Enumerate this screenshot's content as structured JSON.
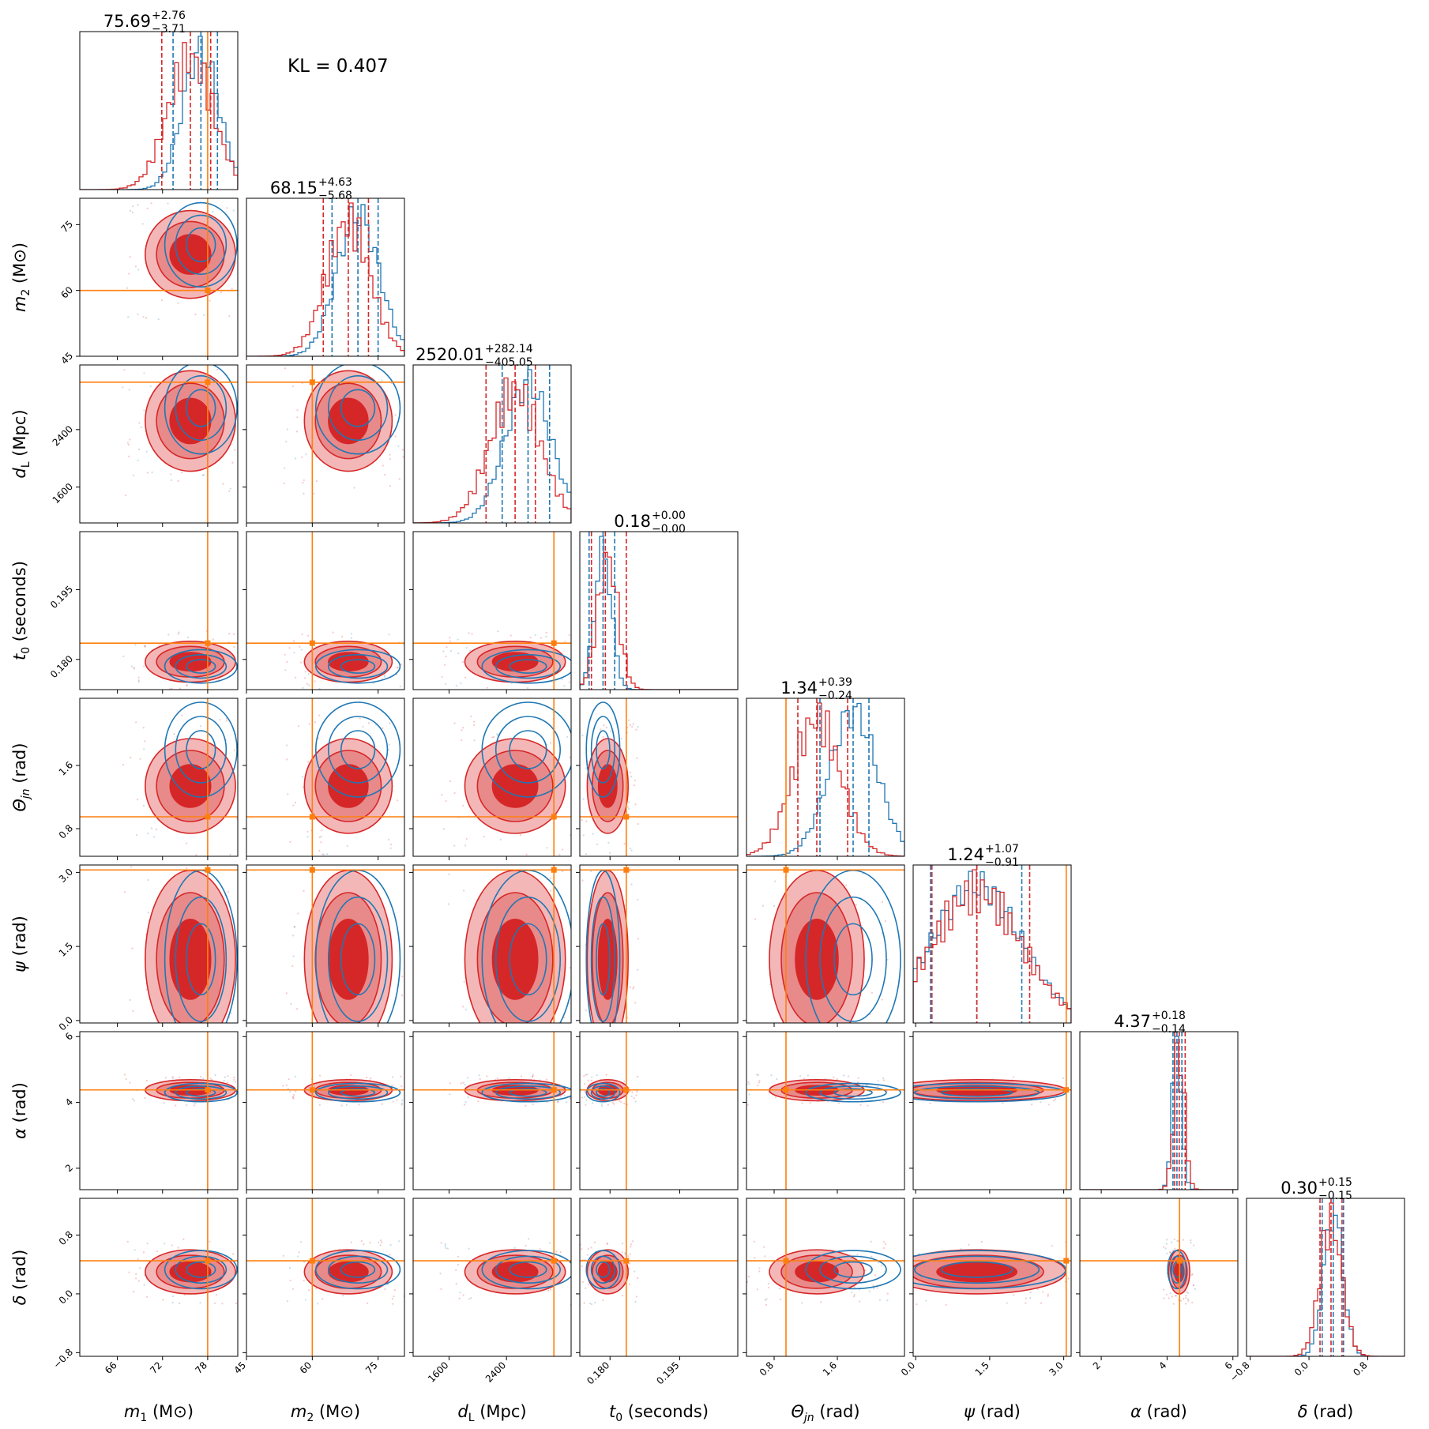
{
  "kl_text": "KL = 0.407",
  "colors": {
    "posterior_a": "#d62728",
    "posterior_a_fill_light": "#f4b7b7",
    "posterior_a_fill_mid": "#e88a8a",
    "posterior_b": "#1f77b4",
    "truth": "#ff7f0e"
  },
  "chart_data": {
    "type": "corner",
    "parameters": [
      {
        "key": "m1",
        "label_main": "m",
        "label_sub": "1",
        "label_unit": "(M⊙)",
        "range": [
          61,
          82
        ],
        "ticks": [
          66,
          72,
          78
        ],
        "truth": 78,
        "median": "75.69",
        "plus": "+2.76",
        "minus": "−3.71",
        "red_q": [
          71.9,
          75.7,
          78.4
        ],
        "blue_q": [
          73.4,
          77.1,
          79.3
        ],
        "red_mean": 75.7,
        "red_sd": 3.0,
        "blue_mean": 77.1,
        "blue_sd": 2.4
      },
      {
        "key": "m2",
        "label_main": "m",
        "label_sub": "2",
        "label_unit": "(M⊙)",
        "range": [
          45,
          81
        ],
        "ticks": [
          45,
          60,
          75
        ],
        "truth": 60,
        "median": "68.15",
        "plus": "+4.63",
        "minus": "−5.68",
        "red_q": [
          62.5,
          68.2,
          72.8
        ],
        "blue_q": [
          64.5,
          70.4,
          75.0
        ],
        "red_mean": 68.2,
        "red_sd": 5.0,
        "blue_mean": 70.4,
        "blue_sd": 4.8
      },
      {
        "key": "dL",
        "label_main": "d",
        "label_sub": "L",
        "label_unit": "(Mpc)",
        "range": [
          1100,
          3300
        ],
        "ticks": [
          1600,
          2400
        ],
        "truth": 3060,
        "median": "2520.01",
        "plus": "+282.14",
        "minus": "−405.05",
        "red_q": [
          2115,
          2520,
          2802
        ],
        "blue_q": [
          2340,
          2700,
          3000
        ],
        "red_mean": 2520,
        "red_sd": 350,
        "blue_mean": 2700,
        "blue_sd": 320
      },
      {
        "key": "t0",
        "label_main": "t",
        "label_sub": "0",
        "label_unit": "(seconds)",
        "range": [
          0.1735,
          0.2075
        ],
        "ticks": [
          0.18,
          0.195
        ],
        "tick_labels": [
          "0.180",
          "0.195"
        ],
        "truth": 0.1835,
        "median": "0.18",
        "plus": "+0.00",
        "minus": "−0.00",
        "red_q": [
          0.176,
          0.179,
          0.1835
        ],
        "blue_q": [
          0.1755,
          0.1785,
          0.181
        ],
        "red_mean": 0.1795,
        "red_sd": 0.0022,
        "blue_mean": 0.1785,
        "blue_sd": 0.0018
      },
      {
        "key": "theta",
        "label_main": "Θ",
        "label_sub": "jn",
        "label_unit": "(rad)",
        "range": [
          0.45,
          2.45
        ],
        "ticks": [
          0.8,
          1.6
        ],
        "truth": 0.95,
        "median": "1.34",
        "plus": "+0.39",
        "minus": "−0.24",
        "red_q": [
          1.1,
          1.34,
          1.73
        ],
        "blue_q": [
          1.38,
          1.8,
          2.0
        ],
        "red_mean": 1.34,
        "red_sd": 0.3,
        "blue_mean": 1.8,
        "blue_sd": 0.3
      },
      {
        "key": "psi",
        "label_main": "ψ",
        "label_sub": "",
        "label_unit": "(rad)",
        "range": [
          -0.05,
          3.15
        ],
        "ticks": [
          0.0,
          1.5,
          3.0
        ],
        "tick_labels": [
          "0.0",
          "1.5",
          "3.0"
        ],
        "truth": 3.05,
        "median": "1.24",
        "plus": "+1.07",
        "minus": "−0.91",
        "red_q": [
          0.33,
          1.24,
          2.31
        ],
        "blue_q": [
          0.3,
          1.24,
          2.15
        ],
        "red_mean": 1.24,
        "red_sd": 0.9,
        "blue_mean": 1.24,
        "blue_sd": 0.9
      },
      {
        "key": "alpha",
        "label_main": "α",
        "label_sub": "",
        "label_unit": "(rad)",
        "range": [
          1.35,
          6.15
        ],
        "ticks": [
          2,
          4,
          6
        ],
        "truth": 4.38,
        "median": "4.37",
        "plus": "+0.18",
        "minus": "−0.14",
        "red_q": [
          4.23,
          4.37,
          4.55
        ],
        "blue_q": [
          4.18,
          4.3,
          4.45
        ],
        "red_mean": 4.37,
        "red_sd": 0.16,
        "blue_mean": 4.3,
        "blue_sd": 0.14
      },
      {
        "key": "delta",
        "label_main": "δ",
        "label_sub": "",
        "label_unit": "(rad)",
        "range": [
          -0.85,
          1.3
        ],
        "ticks": [
          -0.8,
          0.0,
          0.8
        ],
        "tick_labels": [
          "−0.8",
          "0.0",
          "0.8"
        ],
        "truth": 0.45,
        "median": "0.30",
        "plus": "+0.15",
        "minus": "−0.15",
        "red_q": [
          0.15,
          0.3,
          0.45
        ],
        "blue_q": [
          0.18,
          0.33,
          0.47
        ],
        "red_mean": 0.3,
        "red_sd": 0.15,
        "blue_mean": 0.33,
        "blue_sd": 0.13
      }
    ]
  }
}
